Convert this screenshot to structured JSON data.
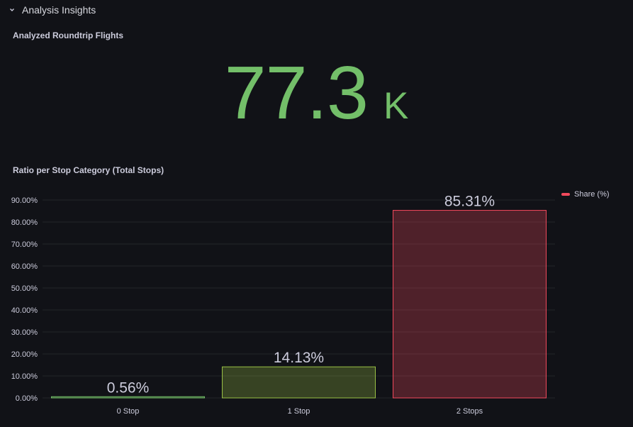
{
  "row": {
    "title": "Analysis Insights",
    "icon": "chevron-down-icon"
  },
  "stat_panel": {
    "title": "Analyzed Roundtrip Flights",
    "value": "77.3",
    "unit": "K",
    "color": "#73bf69"
  },
  "chart_panel": {
    "title": "Ratio per Stop Category (Total Stops)",
    "legend": [
      {
        "label": "Share (%)",
        "color": "#f2495c"
      }
    ]
  },
  "chart_data": {
    "type": "bar",
    "title": "Ratio per Stop Category (Total Stops)",
    "categories": [
      "0 Stop",
      "1 Stop",
      "2 Stops"
    ],
    "series": [
      {
        "name": "Share (%)",
        "values": [
          0.56,
          14.13,
          85.31
        ],
        "value_labels": [
          "0.56%",
          "14.13%",
          "85.31%"
        ]
      }
    ],
    "bar_colors": [
      "#73bf69",
      "#9ac145",
      "#f2495c"
    ],
    "ylim": [
      0,
      95
    ],
    "yticks": [
      0,
      10,
      20,
      30,
      40,
      50,
      60,
      70,
      80,
      90
    ],
    "ytick_labels": [
      "0.00%",
      "10.00%",
      "20.00%",
      "30.00%",
      "40.00%",
      "50.00%",
      "60.00%",
      "70.00%",
      "80.00%",
      "90.00%"
    ],
    "grid": true,
    "legend_placement": "right"
  }
}
